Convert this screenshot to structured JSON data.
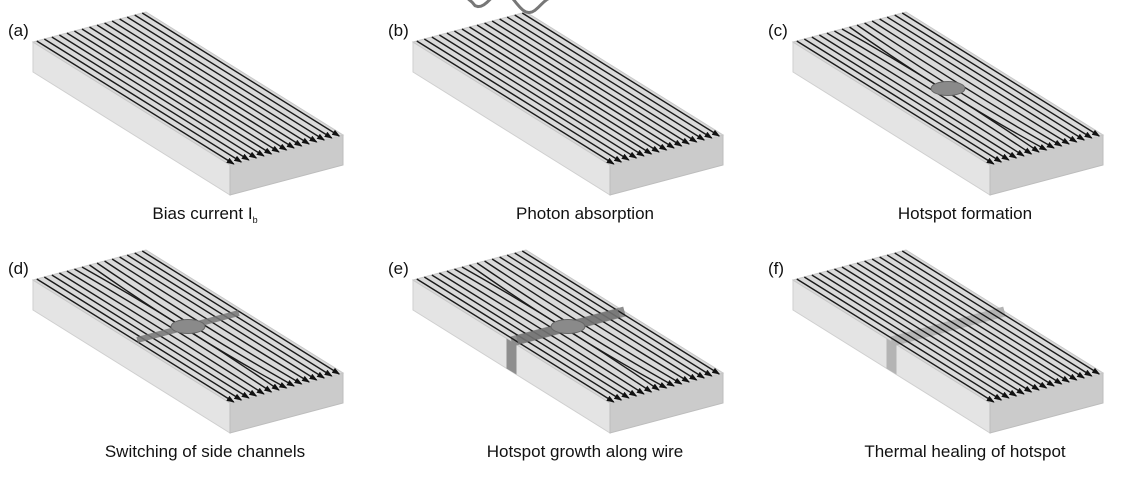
{
  "panels": [
    {
      "label": "(a)",
      "caption": "Bias current I",
      "caption_subscript": "b"
    },
    {
      "label": "(b)",
      "caption": "Photon absorption"
    },
    {
      "label": "(c)",
      "caption": "Hotspot formation"
    },
    {
      "label": "(d)",
      "caption": "Switching of side channels"
    },
    {
      "label": "(e)",
      "caption": "Hotspot growth along wire"
    },
    {
      "label": "(f)",
      "caption": "Thermal healing of hotspot"
    }
  ]
}
